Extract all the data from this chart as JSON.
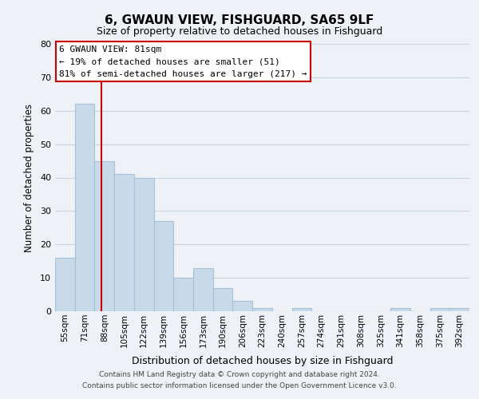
{
  "title": "6, GWAUN VIEW, FISHGUARD, SA65 9LF",
  "subtitle": "Size of property relative to detached houses in Fishguard",
  "xlabel": "Distribution of detached houses by size in Fishguard",
  "ylabel": "Number of detached properties",
  "bar_labels": [
    "55sqm",
    "71sqm",
    "88sqm",
    "105sqm",
    "122sqm",
    "139sqm",
    "156sqm",
    "173sqm",
    "190sqm",
    "206sqm",
    "223sqm",
    "240sqm",
    "257sqm",
    "274sqm",
    "291sqm",
    "308sqm",
    "325sqm",
    "341sqm",
    "358sqm",
    "375sqm",
    "392sqm"
  ],
  "bar_values": [
    16,
    62,
    45,
    41,
    40,
    27,
    10,
    13,
    7,
    3,
    1,
    0,
    1,
    0,
    0,
    0,
    0,
    1,
    0,
    1,
    1
  ],
  "bar_color": "#c8d9ea",
  "bar_edge_color": "#a8c0d6",
  "vline_x": 1.85,
  "vline_color": "#cc0000",
  "ylim": [
    0,
    80
  ],
  "yticks": [
    0,
    10,
    20,
    30,
    40,
    50,
    60,
    70,
    80
  ],
  "annotation_box_title": "6 GWAUN VIEW: 81sqm",
  "annotation_line1": "← 19% of detached houses are smaller (51)",
  "annotation_line2": "81% of semi-detached houses are larger (217) →",
  "footer1": "Contains HM Land Registry data © Crown copyright and database right 2024.",
  "footer2": "Contains public sector information licensed under the Open Government Licence v3.0.",
  "bg_color": "#eef2f7",
  "plot_bg_color": "#eef2f7",
  "grid_color": "#c8d4e0"
}
